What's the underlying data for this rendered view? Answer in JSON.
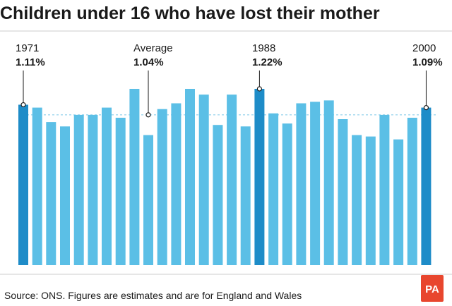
{
  "title": "Children under 16 who have lost their mother",
  "source": "Source: ONS. Figures are estimates and are for England and Wales",
  "logo_text": "PA",
  "colors": {
    "bar": "#5bbfe6",
    "highlight": "#1e8cc8",
    "average_line": "#7cc8e8",
    "rule": "#cccccc",
    "logo": "#e8462e"
  },
  "chart_data": {
    "type": "bar",
    "title": "Children under 16 who have lost their mother",
    "xlabel": "",
    "ylabel": "",
    "ylim": [
      0,
      1.22
    ],
    "values": [
      1.11,
      1.09,
      0.99,
      0.96,
      1.04,
      1.04,
      1.09,
      1.02,
      1.22,
      0.9,
      1.08,
      1.12,
      1.22,
      1.18,
      0.97,
      1.18,
      0.96,
      1.22,
      1.05,
      0.98,
      1.12,
      1.13,
      1.14,
      1.01,
      0.9,
      0.89,
      1.04,
      0.87,
      1.02,
      1.09
    ],
    "highlight_index": [
      0,
      17,
      29
    ],
    "average": {
      "label": "Average",
      "value_label": "1.04%",
      "value": 1.04
    },
    "annotations": [
      {
        "year": "1971",
        "value_label": "1.11%",
        "index": 0
      },
      {
        "year": "1988",
        "value_label": "1.22%",
        "index": 17
      },
      {
        "year": "2000",
        "value_label": "1.09%",
        "index": 29
      }
    ],
    "grid": false,
    "legend": "none"
  }
}
